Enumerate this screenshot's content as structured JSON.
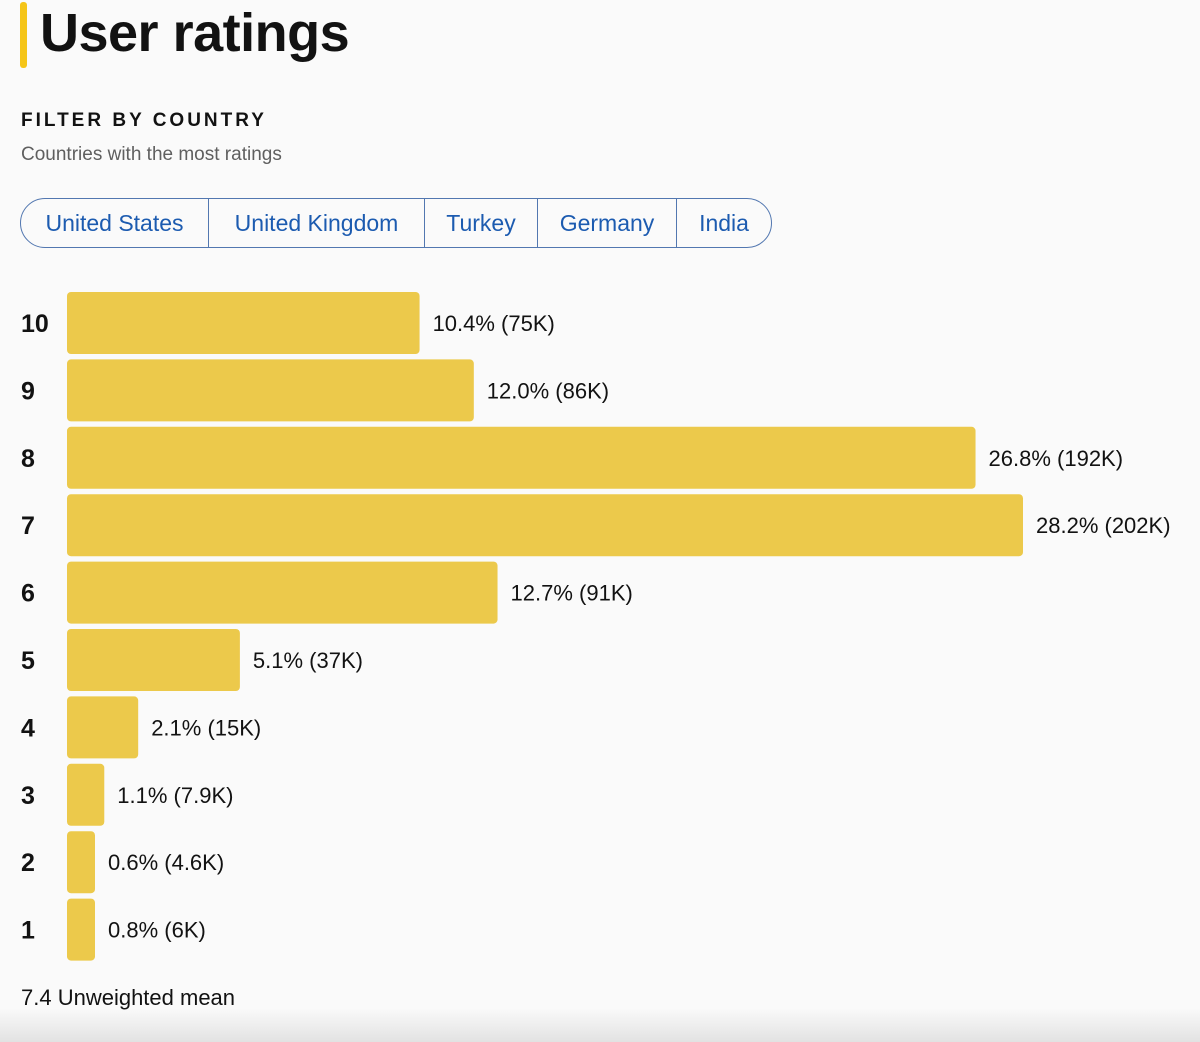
{
  "header": {
    "title": "User ratings",
    "accent_color": "#f5c518"
  },
  "filter": {
    "heading": "FILTER BY COUNTRY",
    "subtitle": "Countries with the most ratings",
    "countries": [
      "United States",
      "United Kingdom",
      "Turkey",
      "Germany",
      "India"
    ],
    "link_color": "#1c5bb0"
  },
  "summary": {
    "mean_label": "7.4 Unweighted mean"
  },
  "chart_data": {
    "type": "bar",
    "orientation": "horizontal",
    "bar_color": "#ecc94b",
    "categories": [
      "10",
      "9",
      "8",
      "7",
      "6",
      "5",
      "4",
      "3",
      "2",
      "1"
    ],
    "values": [
      10.4,
      12.0,
      26.8,
      28.2,
      12.7,
      5.1,
      2.1,
      1.1,
      0.6,
      0.8
    ],
    "counts": [
      "75K",
      "86K",
      "192K",
      "202K",
      "91K",
      "37K",
      "15K",
      "7.9K",
      "4.6K",
      "6K"
    ],
    "data_labels": [
      "10.4% (75K)",
      "12.0% (86K)",
      "26.8% (192K)",
      "28.2% (202K)",
      "12.7% (91K)",
      "5.1% (37K)",
      "2.1% (15K)",
      "1.1% (7.9K)",
      "0.6% (4.6K)",
      "0.8% (6K)"
    ],
    "title": "",
    "xlabel": "",
    "ylabel": "",
    "xlim": [
      0,
      28.2
    ],
    "grid": false,
    "legend": "none"
  }
}
